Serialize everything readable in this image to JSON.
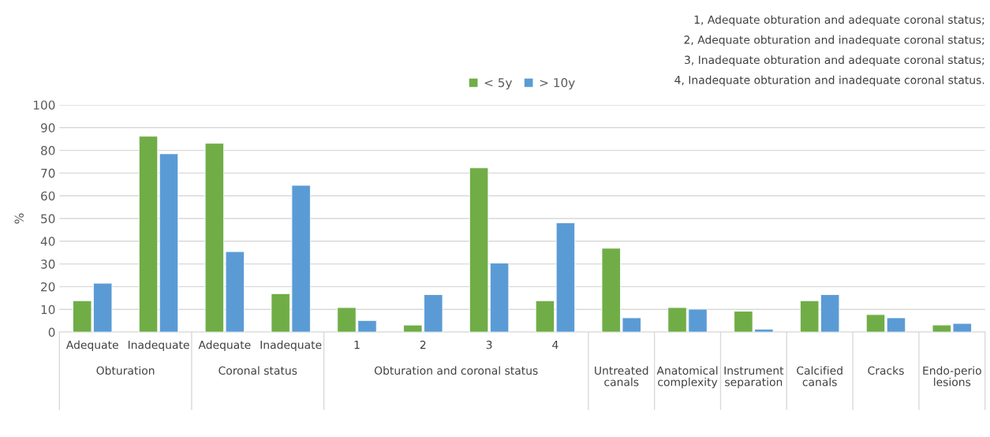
{
  "chart_data": {
    "type": "bar",
    "ylabel": "%",
    "categories": [
      "Adequate",
      "Inadequate",
      "Adequate",
      "Inadequate",
      "1",
      "2",
      "3",
      "4",
      "Untreated canals",
      "Anatomical complexity",
      "Instrument separation",
      "Calcified canals",
      "Cracks",
      "Endo-perio lesions"
    ],
    "series": [
      {
        "name": "< 5y",
        "color": "#70ad47",
        "values": [
          13.8,
          86.2,
          83.1,
          16.9,
          10.8,
          3.1,
          72.3,
          13.8,
          36.9,
          10.8,
          9.2,
          13.8,
          7.7,
          3.1
        ]
      },
      {
        "name": "> 10y",
        "color": "#5b9bd5",
        "values": [
          21.5,
          78.5,
          35.4,
          64.6,
          5.1,
          16.5,
          30.4,
          48.1,
          6.3,
          10.1,
          1.3,
          16.5,
          6.3,
          3.8
        ]
      }
    ],
    "ylim": [
      0,
      100
    ],
    "yticks": [
      0,
      10,
      20,
      30,
      40,
      50,
      60,
      70,
      80,
      90,
      100
    ],
    "grid": "y",
    "legend": "top",
    "annotations": [
      "Obturation",
      "Coronal status",
      "Obturation and coronal status",
      "1, Adequate obturation and adequate coronal status;",
      "2, Adequate obturation and inadequate coronal status;",
      "3, Inadequate obturation and adequate coronal status;",
      "4, Inadequate obturation and inadequate coronal status."
    ]
  }
}
